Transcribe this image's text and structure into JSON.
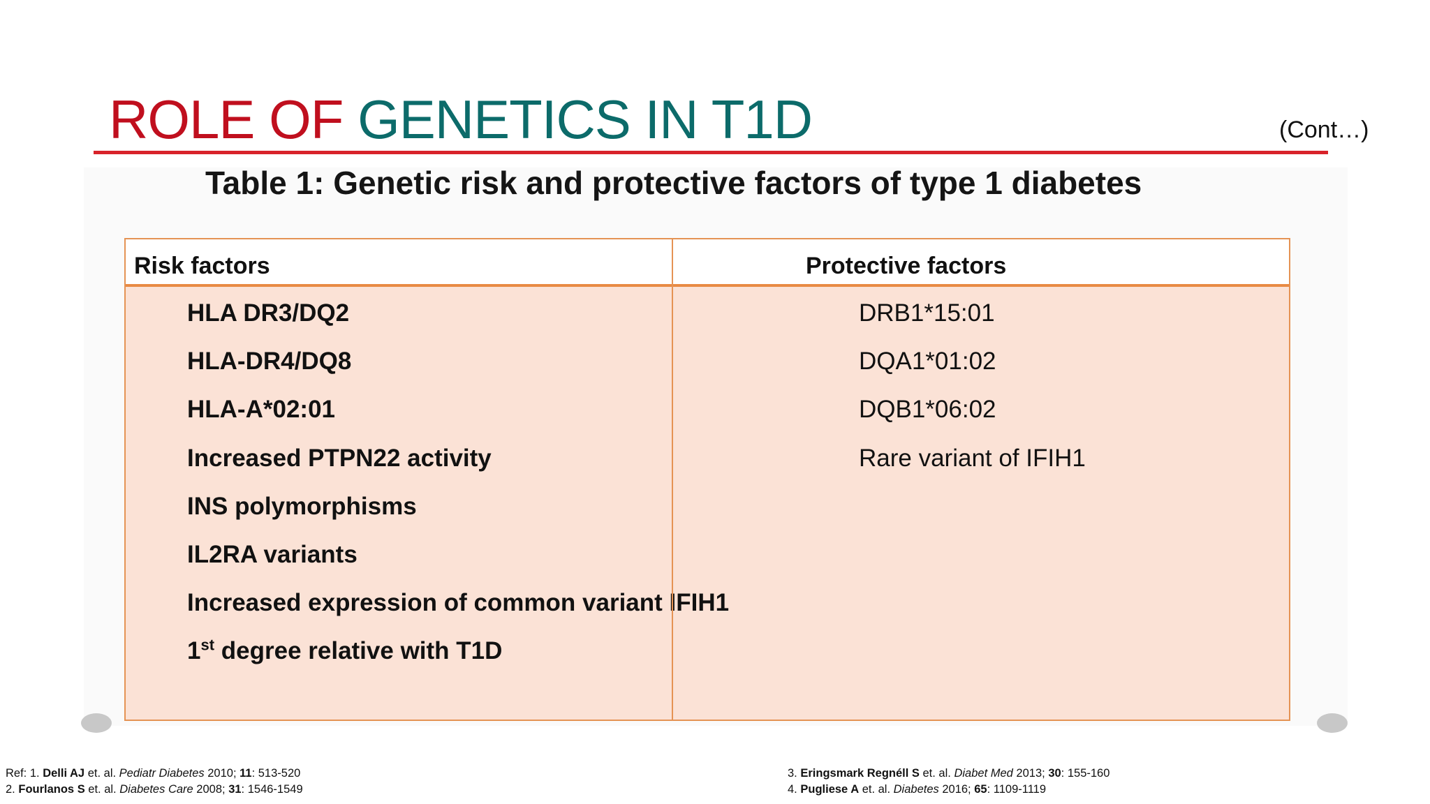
{
  "slide": {
    "title_part1": "ROLE OF ",
    "title_part2": "GENETICS IN T1D",
    "continuation": "(Cont…)",
    "subtitle": "Table 1: Genetic risk and protective factors of type 1 diabetes"
  },
  "table": {
    "headers": {
      "risk": "Risk factors",
      "protective": "Protective factors"
    },
    "risk_factors": [
      "HLA DR3/DQ2",
      "HLA-DR4/DQ8",
      "HLA-A*02:01",
      "Increased PTPN22 activity",
      "INS polymorphisms",
      "IL2RA  variants",
      "Increased expression of common variant IFIH1"
    ],
    "last_risk_factor": {
      "number": "1",
      "superscript": "st",
      "rest": " degree relative with T1D"
    },
    "protective_factors": [
      "DRB1*15:01",
      "DQA1*01:02",
      "DQB1*06:02",
      "Rare variant of IFIH1"
    ]
  },
  "references": {
    "left": [
      {
        "prefix": "Ref: 1. ",
        "author": "Delli AJ",
        "etal": " et. al. ",
        "journal": "Pediatr Diabetes",
        "year": " 2010; ",
        "volume": "11",
        "pages": ": 513-520"
      },
      {
        "prefix": "2.  ",
        "author": "Fourlanos S",
        "etal": " et. al. ",
        "journal": "Diabetes Care",
        "year": " 2008; ",
        "volume": "31",
        "pages": ": 1546-1549"
      }
    ],
    "right": [
      {
        "prefix": "3. ",
        "author": "Eringsmark Regnéll S",
        "etal": " et. al. ",
        "journal": "Diabet Med",
        "year": " 2013; ",
        "volume": "30",
        "pages": ": 155-160"
      },
      {
        "prefix": "4. ",
        "author": "Pugliese A",
        "etal": " et. al. ",
        "journal": "Diabetes",
        "year": " 2016; ",
        "volume": "65",
        "pages": ": 1109-1119"
      }
    ]
  },
  "colors": {
    "title_red": "#c00f1e",
    "title_teal": "#0c6b6a",
    "rule_red": "#d8232a",
    "table_border": "#e59354",
    "table_fill": "#fbe2d6"
  }
}
